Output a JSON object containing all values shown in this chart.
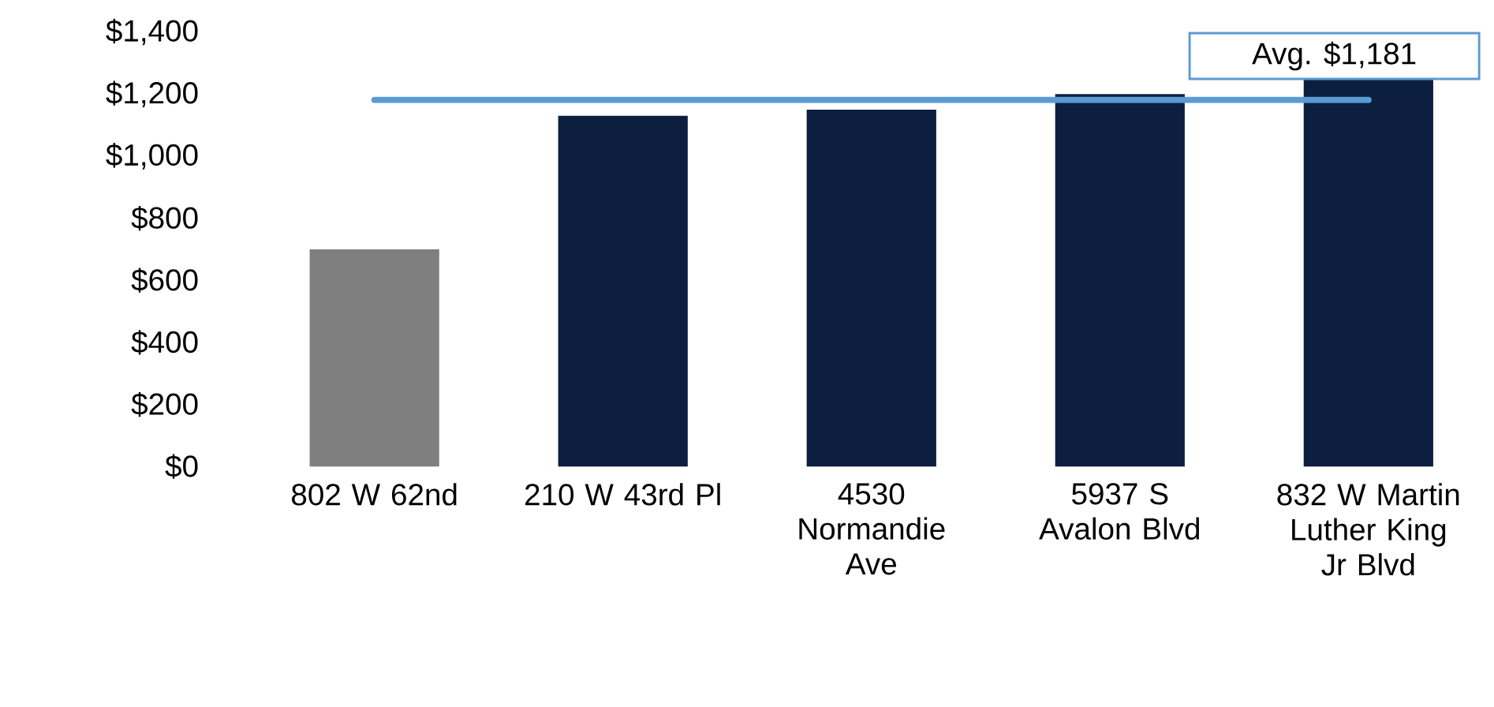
{
  "chart_data": {
    "type": "bar",
    "categories": [
      "802 W 62nd",
      "210 W 43rd Pl",
      "4530 Normandie Ave",
      "5937 S Avalon Blvd",
      "832 W Martin Luther King Jr Blvd"
    ],
    "values": [
      700,
      1130,
      1150,
      1200,
      1250
    ],
    "colors": [
      "#7f7f7f",
      "#0c1f3f",
      "#0c1f3f",
      "#0c1f3f",
      "#0c1f3f"
    ],
    "ylim": [
      0,
      1400
    ],
    "yticks": [
      {
        "value": 0,
        "label": "$0"
      },
      {
        "value": 200,
        "label": "$200"
      },
      {
        "value": 400,
        "label": "$400"
      },
      {
        "value": 600,
        "label": "$600"
      },
      {
        "value": 800,
        "label": "$800"
      },
      {
        "value": 1000,
        "label": "$1,000"
      },
      {
        "value": 1200,
        "label": "$1,200"
      },
      {
        "value": 1400,
        "label": "$1,400"
      }
    ],
    "ref_lines": [
      {
        "axis": "y",
        "value": 1181,
        "label": "Avg. $1,181",
        "color": "#5b9bd5"
      }
    ],
    "grid": false
  }
}
